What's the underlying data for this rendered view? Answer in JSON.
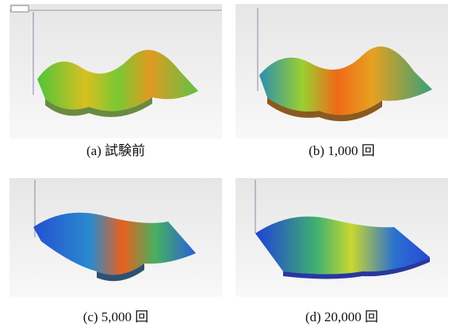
{
  "panels": [
    {
      "caption": "(a) 試験前"
    },
    {
      "caption": "(b) 1,000 回"
    },
    {
      "caption": "(c) 5,000 回"
    },
    {
      "caption": "(d) 20,000 回"
    }
  ]
}
